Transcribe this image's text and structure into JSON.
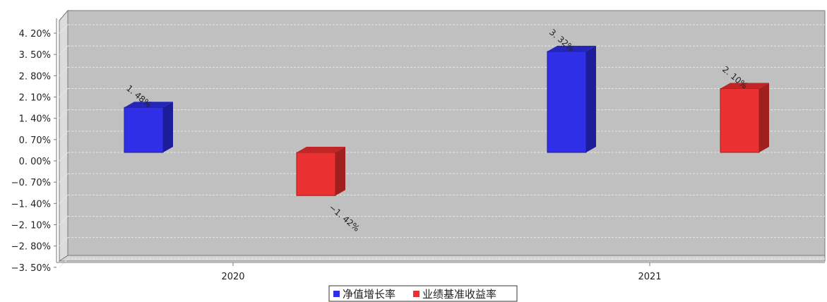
{
  "chart_data": {
    "type": "bar",
    "categories": [
      "2020",
      "2021"
    ],
    "series": [
      {
        "name": "净值增长率",
        "values": [
          1.48,
          3.32
        ],
        "labels": [
          "1. 48%",
          "3. 32%"
        ],
        "color": "#2f2fe8",
        "side_color": "#1d1d9c",
        "top_color": "#2525b8"
      },
      {
        "name": "业绩基准收益率",
        "values": [
          -1.42,
          2.1
        ],
        "labels": [
          "−1. 42%",
          "2. 10%"
        ],
        "color": "#ea3030",
        "side_color": "#a01f1f",
        "top_color": "#c02626"
      }
    ],
    "y_ticks": [
      4.2,
      3.5,
      2.8,
      2.1,
      1.4,
      0.7,
      0.0,
      -0.7,
      -1.4,
      -2.1,
      -2.8,
      -3.5
    ],
    "y_tick_labels": [
      "4. 20%",
      "3. 50%",
      "2. 80%",
      "2. 10%",
      "1. 40%",
      "0. 70%",
      "0. 00%",
      "−0. 70%",
      "−1. 40%",
      "−2. 10%",
      "−2. 80%",
      "−3. 50%"
    ],
    "ylim": [
      -3.5,
      4.5
    ],
    "grid": true,
    "legend_position": "bottom-center",
    "title": "",
    "xlabel": "",
    "ylabel": ""
  },
  "colors": {
    "plot_background": "#c0c0c0",
    "wall_side": "#dcdcdc",
    "grid": "#e6e6e6",
    "axis": "#7a7a7a"
  }
}
